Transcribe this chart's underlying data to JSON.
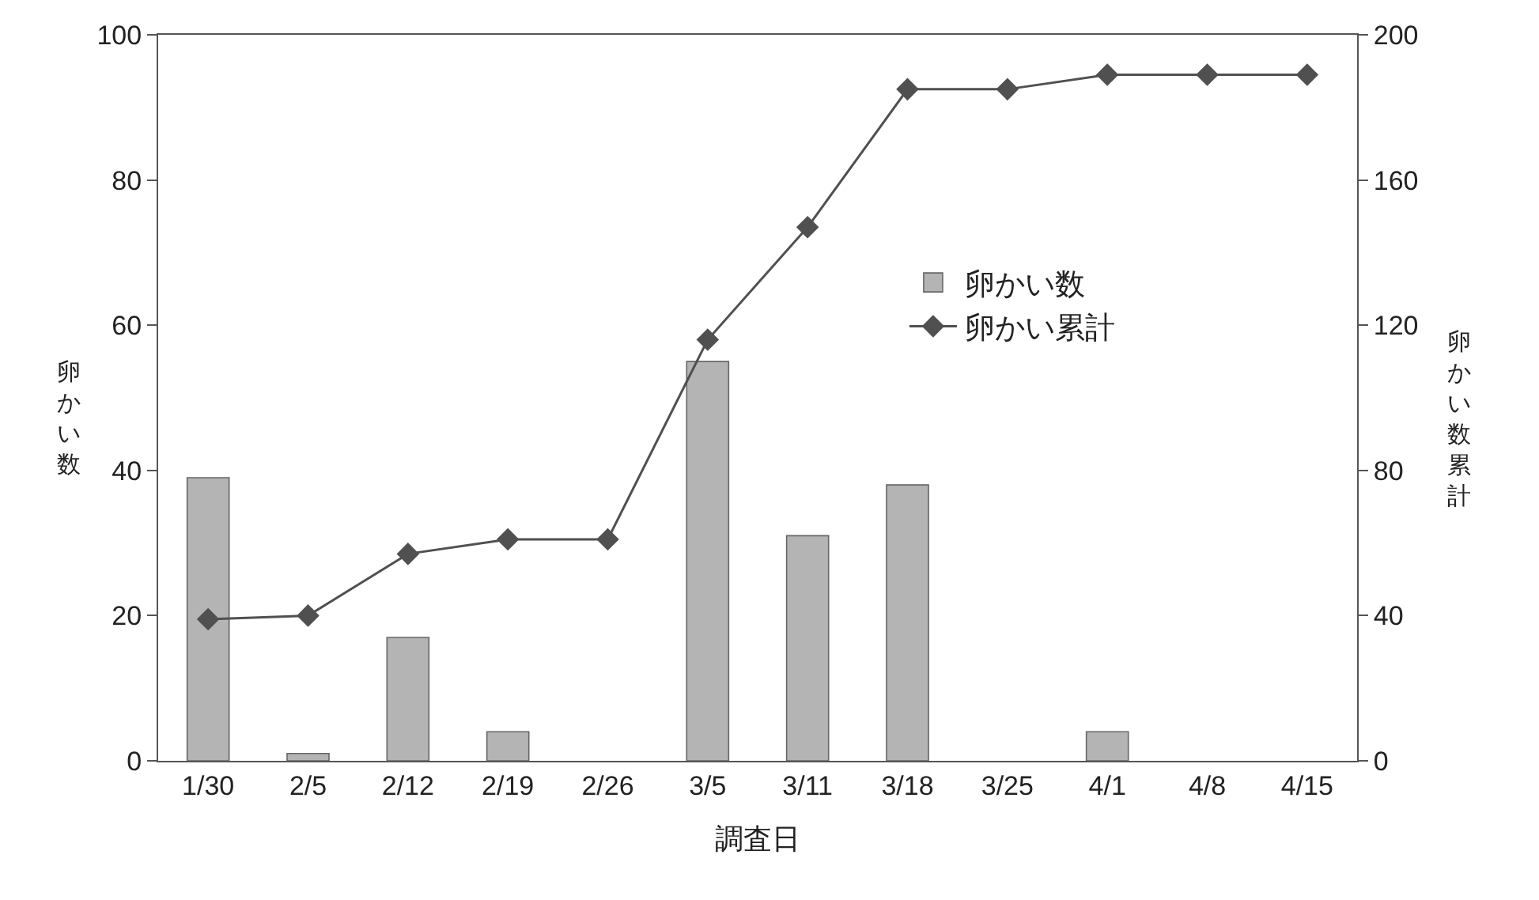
{
  "chart_data": {
    "type": "bar",
    "xlabel": "調査日",
    "ylabel": "卵かい数",
    "y2label": "卵かい数累計",
    "categories": [
      "1/30",
      "2/5",
      "2/12",
      "2/19",
      "2/26",
      "3/5",
      "3/11",
      "3/18",
      "3/25",
      "4/1",
      "4/8",
      "4/15"
    ],
    "series": [
      {
        "name": "卵かい数",
        "color": "#b4b4b4",
        "values": [
          39,
          1,
          17,
          4,
          0,
          55,
          31,
          38,
          0,
          4,
          0,
          0
        ]
      },
      {
        "name": "卵かい累計",
        "type": "line",
        "axis": "y2",
        "color": "#505050",
        "marker": "diamond",
        "line_style": "solid",
        "values": [
          39,
          40,
          57,
          61,
          61,
          116,
          147,
          185,
          185,
          189,
          189,
          189
        ]
      }
    ],
    "ylim": [
      0,
      100
    ],
    "yticks": [
      0,
      20,
      40,
      60,
      80,
      100
    ],
    "y2lim": [
      0,
      200
    ],
    "y2ticks": [
      0,
      40,
      80,
      120,
      160,
      200
    ],
    "grid": false,
    "legend": "right"
  }
}
